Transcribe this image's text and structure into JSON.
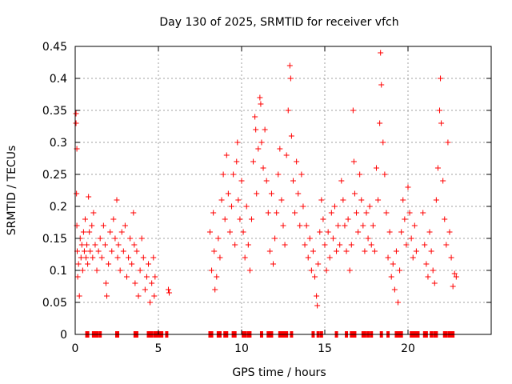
{
  "chart_data": {
    "type": "scatter",
    "title": "Day 130 of 2025, SRMTID for receiver vfch",
    "xlabel": "GPS time / hours",
    "ylabel": "SRMTID / TECUs",
    "xlim": [
      0,
      25
    ],
    "ylim": [
      0,
      0.45
    ],
    "x_ticks": [
      0,
      5,
      10,
      15,
      20
    ],
    "x_tick_labels": [
      "0",
      "5",
      "10",
      "15",
      "20"
    ],
    "y_ticks": [
      0,
      0.05,
      0.1,
      0.15,
      0.2,
      0.25,
      0.3,
      0.35,
      0.4,
      0.45
    ],
    "y_tick_labels": [
      "0",
      "0.05",
      "0.1",
      "0.15",
      "0.2",
      "0.25",
      "0.3",
      "0.35",
      "0.4",
      "0.45"
    ],
    "grid": true,
    "marker": "+",
    "series": [
      {
        "name": "SRMTID",
        "color": "#ff0000",
        "points": [
          [
            0.05,
            0.345
          ],
          [
            0.05,
            0.33
          ],
          [
            0.1,
            0.29
          ],
          [
            0.08,
            0.22
          ],
          [
            0.1,
            0.17
          ],
          [
            0.12,
            0.13
          ],
          [
            0.15,
            0.09
          ],
          [
            0.2,
            0.11
          ],
          [
            0.25,
            0.06
          ],
          [
            0.3,
            0.15
          ],
          [
            0.35,
            0.12
          ],
          [
            0.4,
            0.14
          ],
          [
            0.45,
            0.1
          ],
          [
            0.5,
            0.16
          ],
          [
            0.55,
            0.13
          ],
          [
            0.6,
            0.18
          ],
          [
            0.65,
            0.12
          ],
          [
            0.7,
            0.14
          ],
          [
            0.75,
            0.11
          ],
          [
            0.8,
            0.215
          ],
          [
            0.85,
            0.16
          ],
          [
            0.9,
            0.13
          ],
          [
            1.0,
            0.17
          ],
          [
            1.05,
            0.12
          ],
          [
            1.1,
            0.19
          ],
          [
            1.2,
            0.14
          ],
          [
            1.3,
            0.1
          ],
          [
            1.4,
            0.13
          ],
          [
            1.5,
            0.15
          ],
          [
            1.6,
            0.12
          ],
          [
            1.7,
            0.17
          ],
          [
            1.8,
            0.14
          ],
          [
            1.85,
            0.08
          ],
          [
            1.9,
            0.06
          ],
          [
            2.0,
            0.11
          ],
          [
            2.1,
            0.16
          ],
          [
            2.2,
            0.13
          ],
          [
            2.3,
            0.18
          ],
          [
            2.4,
            0.15
          ],
          [
            2.5,
            0.21
          ],
          [
            2.55,
            0.12
          ],
          [
            2.6,
            0.14
          ],
          [
            2.7,
            0.1
          ],
          [
            2.8,
            0.16
          ],
          [
            2.9,
            0.13
          ],
          [
            3.0,
            0.17
          ],
          [
            3.1,
            0.09
          ],
          [
            3.2,
            0.12
          ],
          [
            3.3,
            0.15
          ],
          [
            3.4,
            0.11
          ],
          [
            3.5,
            0.19
          ],
          [
            3.55,
            0.14
          ],
          [
            3.6,
            0.08
          ],
          [
            3.7,
            0.13
          ],
          [
            3.8,
            0.06
          ],
          [
            3.9,
            0.1
          ],
          [
            4.0,
            0.15
          ],
          [
            4.1,
            0.12
          ],
          [
            4.2,
            0.07
          ],
          [
            4.3,
            0.09
          ],
          [
            4.4,
            0.11
          ],
          [
            4.5,
            0.05
          ],
          [
            4.6,
            0.08
          ],
          [
            4.7,
            0.12
          ],
          [
            4.75,
            0.06
          ],
          [
            4.8,
            0.09
          ],
          [
            5.6,
            0.07
          ],
          [
            5.65,
            0.065
          ],
          [
            8.1,
            0.16
          ],
          [
            8.2,
            0.1
          ],
          [
            8.3,
            0.19
          ],
          [
            8.35,
            0.13
          ],
          [
            8.4,
            0.07
          ],
          [
            8.5,
            0.09
          ],
          [
            8.6,
            0.15
          ],
          [
            8.7,
            0.12
          ],
          [
            8.8,
            0.21
          ],
          [
            8.9,
            0.25
          ],
          [
            9.0,
            0.18
          ],
          [
            9.1,
            0.28
          ],
          [
            9.2,
            0.22
          ],
          [
            9.3,
            0.16
          ],
          [
            9.4,
            0.2
          ],
          [
            9.5,
            0.25
          ],
          [
            9.6,
            0.14
          ],
          [
            9.7,
            0.27
          ],
          [
            9.75,
            0.3
          ],
          [
            9.8,
            0.21
          ],
          [
            9.9,
            0.18
          ],
          [
            10.0,
            0.24
          ],
          [
            10.1,
            0.16
          ],
          [
            10.2,
            0.12
          ],
          [
            10.3,
            0.2
          ],
          [
            10.4,
            0.14
          ],
          [
            10.5,
            0.1
          ],
          [
            10.6,
            0.18
          ],
          [
            10.7,
            0.27
          ],
          [
            10.8,
            0.34
          ],
          [
            10.85,
            0.32
          ],
          [
            10.9,
            0.22
          ],
          [
            11.0,
            0.29
          ],
          [
            11.1,
            0.37
          ],
          [
            11.15,
            0.36
          ],
          [
            11.2,
            0.3
          ],
          [
            11.3,
            0.26
          ],
          [
            11.4,
            0.32
          ],
          [
            11.5,
            0.24
          ],
          [
            11.6,
            0.19
          ],
          [
            11.7,
            0.13
          ],
          [
            11.8,
            0.22
          ],
          [
            11.9,
            0.11
          ],
          [
            12.0,
            0.15
          ],
          [
            12.1,
            0.19
          ],
          [
            12.2,
            0.25
          ],
          [
            12.3,
            0.29
          ],
          [
            12.4,
            0.21
          ],
          [
            12.5,
            0.17
          ],
          [
            12.6,
            0.14
          ],
          [
            12.7,
            0.28
          ],
          [
            12.8,
            0.35
          ],
          [
            12.9,
            0.42
          ],
          [
            12.95,
            0.4
          ],
          [
            13.0,
            0.31
          ],
          [
            13.1,
            0.24
          ],
          [
            13.2,
            0.19
          ],
          [
            13.3,
            0.27
          ],
          [
            13.4,
            0.22
          ],
          [
            13.5,
            0.17
          ],
          [
            13.6,
            0.25
          ],
          [
            13.7,
            0.2
          ],
          [
            13.8,
            0.14
          ],
          [
            13.9,
            0.17
          ],
          [
            14.0,
            0.12
          ],
          [
            14.1,
            0.15
          ],
          [
            14.2,
            0.1
          ],
          [
            14.3,
            0.13
          ],
          [
            14.4,
            0.09
          ],
          [
            14.5,
            0.06
          ],
          [
            14.55,
            0.045
          ],
          [
            14.6,
            0.11
          ],
          [
            14.7,
            0.16
          ],
          [
            14.8,
            0.21
          ],
          [
            14.9,
            0.18
          ],
          [
            15.0,
            0.14
          ],
          [
            15.1,
            0.1
          ],
          [
            15.2,
            0.16
          ],
          [
            15.3,
            0.12
          ],
          [
            15.4,
            0.19
          ],
          [
            15.5,
            0.15
          ],
          [
            15.6,
            0.2
          ],
          [
            15.7,
            0.13
          ],
          [
            15.8,
            0.17
          ],
          [
            15.9,
            0.14
          ],
          [
            16.0,
            0.24
          ],
          [
            16.1,
            0.21
          ],
          [
            16.2,
            0.17
          ],
          [
            16.3,
            0.13
          ],
          [
            16.4,
            0.18
          ],
          [
            16.5,
            0.1
          ],
          [
            16.6,
            0.14
          ],
          [
            16.7,
            0.35
          ],
          [
            16.75,
            0.27
          ],
          [
            16.8,
            0.22
          ],
          [
            16.9,
            0.19
          ],
          [
            17.0,
            0.16
          ],
          [
            17.1,
            0.25
          ],
          [
            17.2,
            0.21
          ],
          [
            17.3,
            0.17
          ],
          [
            17.4,
            0.13
          ],
          [
            17.5,
            0.19
          ],
          [
            17.6,
            0.15
          ],
          [
            17.7,
            0.2
          ],
          [
            17.8,
            0.14
          ],
          [
            17.9,
            0.17
          ],
          [
            18.0,
            0.13
          ],
          [
            18.1,
            0.26
          ],
          [
            18.2,
            0.21
          ],
          [
            18.3,
            0.33
          ],
          [
            18.35,
            0.44
          ],
          [
            18.4,
            0.39
          ],
          [
            18.5,
            0.3
          ],
          [
            18.6,
            0.25
          ],
          [
            18.7,
            0.19
          ],
          [
            18.8,
            0.12
          ],
          [
            18.9,
            0.16
          ],
          [
            19.0,
            0.09
          ],
          [
            19.1,
            0.11
          ],
          [
            19.2,
            0.07
          ],
          [
            19.3,
            0.13
          ],
          [
            19.4,
            0.05
          ],
          [
            19.5,
            0.1
          ],
          [
            19.6,
            0.16
          ],
          [
            19.7,
            0.21
          ],
          [
            19.8,
            0.18
          ],
          [
            19.9,
            0.14
          ],
          [
            20.0,
            0.23
          ],
          [
            20.1,
            0.19
          ],
          [
            20.2,
            0.15
          ],
          [
            20.3,
            0.12
          ],
          [
            20.4,
            0.17
          ],
          [
            20.5,
            0.13
          ],
          [
            20.9,
            0.19
          ],
          [
            21.0,
            0.14
          ],
          [
            21.1,
            0.11
          ],
          [
            21.2,
            0.09
          ],
          [
            21.3,
            0.16
          ],
          [
            21.4,
            0.13
          ],
          [
            21.5,
            0.1
          ],
          [
            21.6,
            0.08
          ],
          [
            21.7,
            0.21
          ],
          [
            21.8,
            0.26
          ],
          [
            21.9,
            0.35
          ],
          [
            21.95,
            0.4
          ],
          [
            22.0,
            0.33
          ],
          [
            22.1,
            0.24
          ],
          [
            22.2,
            0.18
          ],
          [
            22.3,
            0.14
          ],
          [
            22.4,
            0.3
          ],
          [
            22.5,
            0.16
          ],
          [
            22.6,
            0.12
          ],
          [
            22.8,
            0.095
          ],
          [
            22.9,
            0.09
          ],
          [
            22.7,
            0.075
          ]
        ],
        "zero_points": [
          0.7,
          0.75,
          1.1,
          1.2,
          1.3,
          1.5,
          2.5,
          2.55,
          3.6,
          3.7,
          4.4,
          4.5,
          4.6,
          4.8,
          4.9,
          5.0,
          5.1,
          5.2,
          5.5,
          8.1,
          8.2,
          8.6,
          8.7,
          9.0,
          9.1,
          9.5,
          9.6,
          10.1,
          10.2,
          10.4,
          10.5,
          11.2,
          11.6,
          11.7,
          11.8,
          12.3,
          12.4,
          12.5,
          12.6,
          12.7,
          13.0,
          14.3,
          14.6,
          14.8,
          15.7,
          16.3,
          16.6,
          16.7,
          16.8,
          17.3,
          17.4,
          17.6,
          17.8,
          18.4,
          18.8,
          19.3,
          19.4,
          19.5,
          19.6,
          20.2,
          20.3,
          20.4,
          20.5,
          20.6,
          21.0,
          21.1,
          21.4,
          21.6,
          21.7,
          22.2,
          22.3,
          22.5,
          22.6,
          22.7
        ]
      }
    ]
  }
}
